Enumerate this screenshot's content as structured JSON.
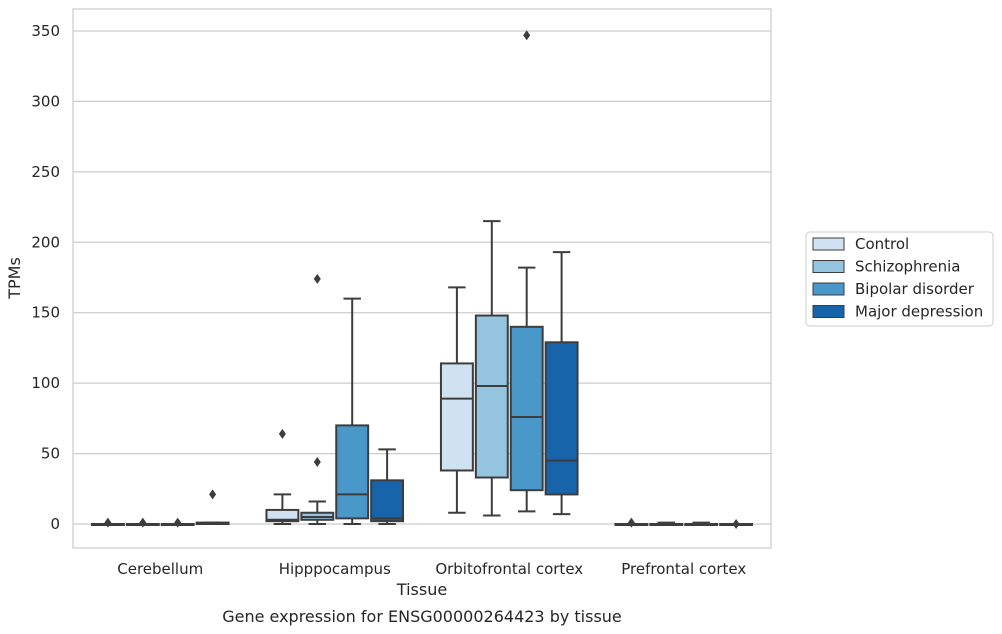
{
  "chart_data": {
    "type": "box",
    "title": "",
    "caption": "Gene expression for ENSG00000264423 by tissue",
    "xlabel": "Tissue",
    "ylabel": "TPMs",
    "ylim": [
      -17,
      365
    ],
    "yticks": [
      0,
      50,
      100,
      150,
      200,
      250,
      300,
      350
    ],
    "grid": "horizontal",
    "legend_position": "right",
    "categories": [
      "Cerebellum",
      "Hipppocampus",
      "Orbitofrontal cortex",
      "Prefrontal cortex"
    ],
    "series": [
      {
        "name": "Control",
        "color": "#d0e1f2",
        "boxes": [
          {
            "whislo": 0,
            "q1": 0,
            "med": 0,
            "q3": 0,
            "whishi": 0,
            "fliers": [
              1
            ]
          },
          {
            "whislo": 0,
            "q1": 2,
            "med": 3,
            "q3": 10,
            "whishi": 21,
            "fliers": [
              64
            ]
          },
          {
            "whislo": 8,
            "q1": 38,
            "med": 89,
            "q3": 114,
            "whishi": 168,
            "fliers": []
          },
          {
            "whislo": 0,
            "q1": 0,
            "med": 0,
            "q3": 0,
            "whishi": 0,
            "fliers": [
              1
            ]
          }
        ]
      },
      {
        "name": "Schizophrenia",
        "color": "#94c4df",
        "boxes": [
          {
            "whislo": 0,
            "q1": 0,
            "med": 0,
            "q3": 0,
            "whishi": 0,
            "fliers": [
              1
            ]
          },
          {
            "whislo": 0,
            "q1": 3,
            "med": 5,
            "q3": 8,
            "whishi": 16,
            "fliers": [
              44,
              174
            ]
          },
          {
            "whislo": 6,
            "q1": 33,
            "med": 98,
            "q3": 148,
            "whishi": 215,
            "fliers": []
          },
          {
            "whislo": 0,
            "q1": 0,
            "med": 0,
            "q3": 0,
            "whishi": 1,
            "fliers": []
          }
        ]
      },
      {
        "name": "Bipolar disorder",
        "color": "#4a98c9",
        "boxes": [
          {
            "whislo": 0,
            "q1": 0,
            "med": 0,
            "q3": 0,
            "whishi": 0,
            "fliers": [
              1
            ]
          },
          {
            "whislo": 0,
            "q1": 4,
            "med": 21,
            "q3": 70,
            "whishi": 160,
            "fliers": []
          },
          {
            "whislo": 9,
            "q1": 24,
            "med": 76,
            "q3": 140,
            "whishi": 182,
            "fliers": [
              347
            ]
          },
          {
            "whislo": 0,
            "q1": 0,
            "med": 0,
            "q3": 0,
            "whishi": 1,
            "fliers": []
          }
        ]
      },
      {
        "name": "Major depression",
        "color": "#1764ab",
        "boxes": [
          {
            "whislo": 0,
            "q1": 0,
            "med": 0,
            "q3": 1,
            "whishi": 1,
            "fliers": [
              21
            ]
          },
          {
            "whislo": 0,
            "q1": 2,
            "med": 4,
            "q3": 31,
            "whishi": 53,
            "fliers": []
          },
          {
            "whislo": 7,
            "q1": 21,
            "med": 45,
            "q3": 129,
            "whishi": 193,
            "fliers": []
          },
          {
            "whislo": 0,
            "q1": 0,
            "med": 0,
            "q3": 0,
            "whishi": 0,
            "fliers": [
              0
            ]
          }
        ]
      }
    ]
  }
}
